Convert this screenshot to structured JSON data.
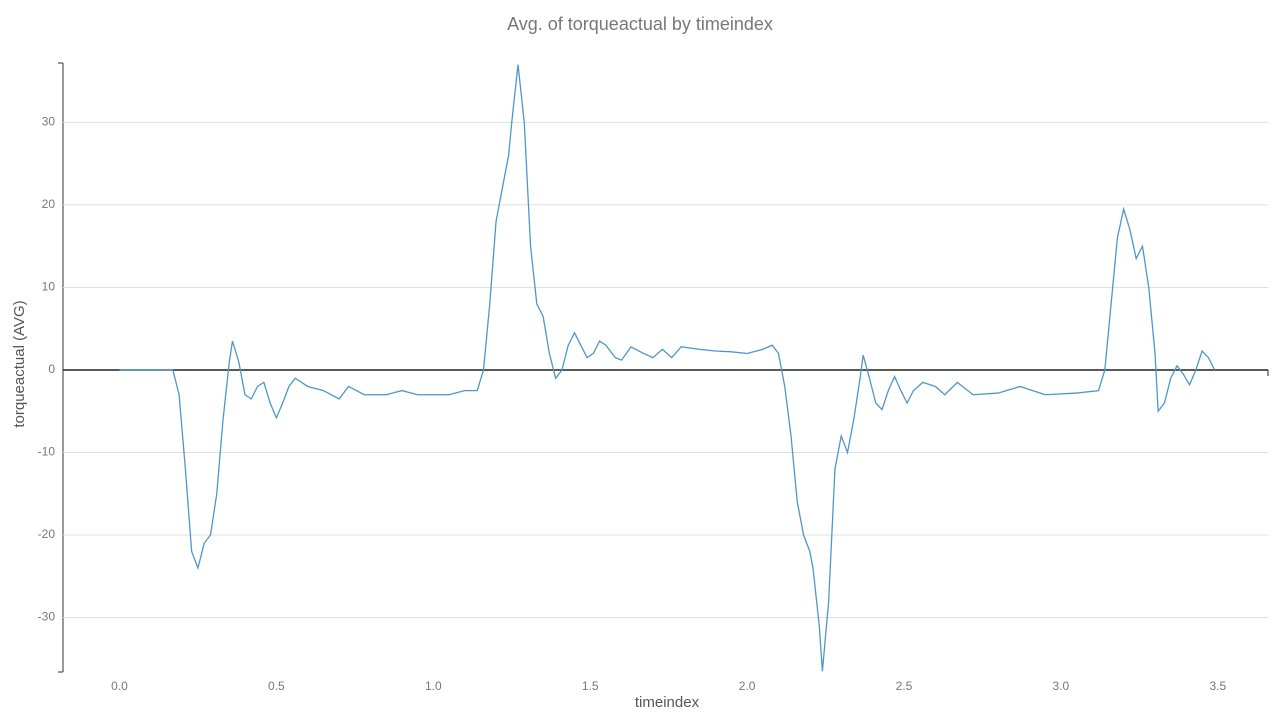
{
  "chart_data": {
    "type": "line",
    "title": "Avg. of torqueactual by timeindex",
    "x_label": "timeindex",
    "y_label": "torqueactual (AVG)",
    "x": [
      0.0,
      0.05,
      0.1,
      0.15,
      0.17,
      0.19,
      0.21,
      0.23,
      0.25,
      0.27,
      0.29,
      0.31,
      0.33,
      0.35,
      0.36,
      0.38,
      0.4,
      0.42,
      0.44,
      0.46,
      0.48,
      0.5,
      0.52,
      0.54,
      0.56,
      0.6,
      0.65,
      0.7,
      0.73,
      0.78,
      0.85,
      0.9,
      0.95,
      1.0,
      1.05,
      1.1,
      1.14,
      1.16,
      1.18,
      1.2,
      1.22,
      1.24,
      1.25,
      1.27,
      1.29,
      1.31,
      1.33,
      1.35,
      1.37,
      1.39,
      1.41,
      1.43,
      1.45,
      1.47,
      1.49,
      1.51,
      1.53,
      1.55,
      1.58,
      1.6,
      1.63,
      1.67,
      1.7,
      1.73,
      1.76,
      1.79,
      1.85,
      1.9,
      1.95,
      2.0,
      2.05,
      2.08,
      2.1,
      2.12,
      2.14,
      2.16,
      2.18,
      2.2,
      2.21,
      2.23,
      2.24,
      2.26,
      2.28,
      2.3,
      2.32,
      2.34,
      2.36,
      2.37,
      2.39,
      2.41,
      2.43,
      2.45,
      2.47,
      2.49,
      2.51,
      2.53,
      2.56,
      2.6,
      2.63,
      2.67,
      2.72,
      2.8,
      2.87,
      2.95,
      3.05,
      3.12,
      3.14,
      3.16,
      3.18,
      3.2,
      3.22,
      3.24,
      3.26,
      3.28,
      3.3,
      3.31,
      3.33,
      3.35,
      3.37,
      3.39,
      3.41,
      3.43,
      3.45,
      3.47,
      3.49
    ],
    "series": [
      {
        "name": "torqueactual",
        "color": "#4e97c9",
        "values": [
          0,
          0,
          0,
          0,
          0,
          -3,
          -12,
          -22,
          -24,
          -21,
          -20,
          -15,
          -6,
          1,
          3.5,
          1,
          -3,
          -3.5,
          -2,
          -1.5,
          -4,
          -5.8,
          -4,
          -2,
          -1,
          -2,
          -2.5,
          -3.5,
          -2,
          -3,
          -3,
          -2.5,
          -3,
          -3,
          -3,
          -2.5,
          -2.5,
          0,
          8,
          18,
          22,
          26,
          30,
          37,
          30,
          15,
          8,
          6.5,
          2,
          -1,
          0,
          3,
          4.5,
          3,
          1.5,
          2,
          3.5,
          3,
          1.5,
          1.2,
          2.8,
          2,
          1.5,
          2.5,
          1.5,
          2.8,
          2.5,
          2.3,
          2.2,
          2,
          2.5,
          3,
          2,
          -2,
          -8,
          -16,
          -20,
          -22,
          -24,
          -31,
          -36.5,
          -28,
          -12,
          -8,
          -10,
          -6,
          -1,
          1.8,
          -1,
          -4,
          -4.8,
          -2.5,
          -0.8,
          -2.5,
          -4,
          -2.5,
          -1.5,
          -2,
          -3,
          -1.5,
          -3,
          -2.8,
          -2,
          -3,
          -2.8,
          -2.5,
          0,
          8,
          16,
          19.5,
          17,
          13.5,
          15,
          10,
          2,
          -5,
          -4,
          -1,
          0.5,
          -0.5,
          -1.8,
          0,
          2.3,
          1.5,
          0
        ]
      }
    ],
    "xlim": [
      -0.18,
      3.66
    ],
    "ylim": [
      -36.6,
      37.2
    ],
    "xticks": [
      {
        "value": 0,
        "label": "0.0"
      },
      0.5,
      {
        "value": 1,
        "label": "1.0"
      },
      1.5,
      {
        "value": 2,
        "label": "2.0"
      },
      2.5,
      {
        "value": 3,
        "label": "3.0"
      },
      3.5
    ],
    "yticks": [
      -30,
      -20,
      -10,
      0,
      10,
      20,
      30
    ],
    "grid": true
  }
}
